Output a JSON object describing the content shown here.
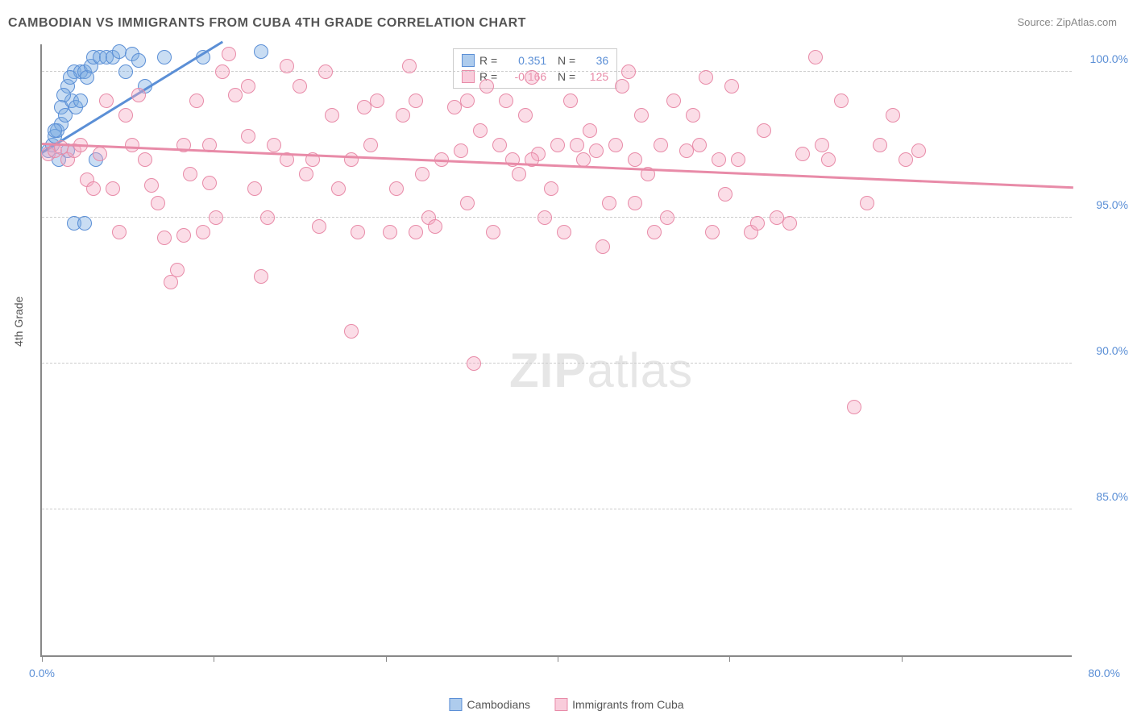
{
  "title": "CAMBODIAN VS IMMIGRANTS FROM CUBA 4TH GRADE CORRELATION CHART",
  "source": "Source: ZipAtlas.com",
  "ylabel": "4th Grade",
  "watermark_part1": "ZIP",
  "watermark_part2": "atlas",
  "chart": {
    "type": "scatter",
    "background_color": "#ffffff",
    "grid_color": "#cccccc",
    "axis_color": "#888888",
    "xlim": [
      0,
      80
    ],
    "ylim": [
      80,
      101
    ],
    "y_ticks": [
      85.0,
      90.0,
      95.0,
      100.0
    ],
    "y_tick_labels": [
      "85.0%",
      "90.0%",
      "95.0%",
      "100.0%"
    ],
    "x_ticks": [
      0,
      13.3,
      26.7,
      40,
      53.3,
      66.7
    ],
    "x_left_label": "0.0%",
    "x_right_label": "80.0%",
    "tick_fontsize": 14,
    "tick_color": "#5b8fd6",
    "marker_radius": 9,
    "marker_opacity": 0.45,
    "series": [
      {
        "name": "Cambodians",
        "color": "#5b8fd6",
        "fill": "rgba(120,170,225,0.4)",
        "stroke": "#5b8fd6",
        "R": "0.351",
        "N": "36",
        "trend": {
          "x1": 0,
          "y1": 97.2,
          "x2": 14,
          "y2": 101
        },
        "points": [
          [
            0.5,
            97.3
          ],
          [
            0.8,
            97.5
          ],
          [
            1.0,
            97.8
          ],
          [
            1.2,
            98.0
          ],
          [
            1.3,
            97.0
          ],
          [
            1.5,
            98.2
          ],
          [
            1.5,
            98.8
          ],
          [
            1.8,
            98.5
          ],
          [
            2.0,
            99.5
          ],
          [
            2.0,
            97.3
          ],
          [
            2.3,
            99.0
          ],
          [
            2.5,
            100.0
          ],
          [
            2.6,
            98.8
          ],
          [
            3.0,
            100.0
          ],
          [
            3.0,
            99.0
          ],
          [
            3.3,
            100.0
          ],
          [
            3.5,
            99.8
          ],
          [
            3.8,
            100.2
          ],
          [
            4.0,
            100.5
          ],
          [
            4.2,
            97.0
          ],
          [
            4.5,
            100.5
          ],
          [
            5.0,
            100.5
          ],
          [
            5.5,
            100.5
          ],
          [
            6.0,
            100.7
          ],
          [
            6.5,
            100.0
          ],
          [
            7.0,
            100.6
          ],
          [
            7.5,
            100.4
          ],
          [
            8.0,
            99.5
          ],
          [
            9.5,
            100.5
          ],
          [
            12.5,
            100.5
          ],
          [
            2.5,
            94.8
          ],
          [
            3.3,
            94.8
          ],
          [
            17.0,
            100.7
          ],
          [
            1.0,
            98.0
          ],
          [
            1.7,
            99.2
          ],
          [
            2.2,
            99.8
          ]
        ]
      },
      {
        "name": "Immigrants from Cuba",
        "color": "#e88ba8",
        "fill": "rgba(245,170,195,0.4)",
        "stroke": "#e88ba8",
        "R": "-0.166",
        "N": "125",
        "trend": {
          "x1": 0,
          "y1": 97.5,
          "x2": 80,
          "y2": 96.0
        },
        "points": [
          [
            0.5,
            97.2
          ],
          [
            1.0,
            97.3
          ],
          [
            1.5,
            97.4
          ],
          [
            2.0,
            97.0
          ],
          [
            2.5,
            97.3
          ],
          [
            3.0,
            97.5
          ],
          [
            3.5,
            96.3
          ],
          [
            4.0,
            96.0
          ],
          [
            4.5,
            97.2
          ],
          [
            5.0,
            99.0
          ],
          [
            5.5,
            96.0
          ],
          [
            6.0,
            94.5
          ],
          [
            6.5,
            98.5
          ],
          [
            7.0,
            97.5
          ],
          [
            7.5,
            99.2
          ],
          [
            8.0,
            97.0
          ],
          [
            8.5,
            96.1
          ],
          [
            9.0,
            95.5
          ],
          [
            9.5,
            94.3
          ],
          [
            10.0,
            92.8
          ],
          [
            10.5,
            93.2
          ],
          [
            11.0,
            94.4
          ],
          [
            11.5,
            96.5
          ],
          [
            12.0,
            99.0
          ],
          [
            12.5,
            94.5
          ],
          [
            13.0,
            97.5
          ],
          [
            13.5,
            95.0
          ],
          [
            14.0,
            100.0
          ],
          [
            14.5,
            100.6
          ],
          [
            15.0,
            99.2
          ],
          [
            16.0,
            97.8
          ],
          [
            16.5,
            96.0
          ],
          [
            17.0,
            93.0
          ],
          [
            17.5,
            95.0
          ],
          [
            18.0,
            97.5
          ],
          [
            19.0,
            100.2
          ],
          [
            20.0,
            99.5
          ],
          [
            20.5,
            96.5
          ],
          [
            21.0,
            97.0
          ],
          [
            22.0,
            100.0
          ],
          [
            22.5,
            98.5
          ],
          [
            23.0,
            96.0
          ],
          [
            24.0,
            91.1
          ],
          [
            24.5,
            94.5
          ],
          [
            25.0,
            98.8
          ],
          [
            25.5,
            97.5
          ],
          [
            26.0,
            99.0
          ],
          [
            27.0,
            94.5
          ],
          [
            27.5,
            96.0
          ],
          [
            28.0,
            98.5
          ],
          [
            28.5,
            100.2
          ],
          [
            29.0,
            99.0
          ],
          [
            29.5,
            96.5
          ],
          [
            30.0,
            95.0
          ],
          [
            30.5,
            94.7
          ],
          [
            31.0,
            97.0
          ],
          [
            32.0,
            98.8
          ],
          [
            32.5,
            97.3
          ],
          [
            33.0,
            95.5
          ],
          [
            33.5,
            90.0
          ],
          [
            34.0,
            98.0
          ],
          [
            34.5,
            99.5
          ],
          [
            35.0,
            94.5
          ],
          [
            35.5,
            97.5
          ],
          [
            36.0,
            99.0
          ],
          [
            36.5,
            97.0
          ],
          [
            37.0,
            96.5
          ],
          [
            37.5,
            98.5
          ],
          [
            38.0,
            99.8
          ],
          [
            38.5,
            97.2
          ],
          [
            39.0,
            95.0
          ],
          [
            39.5,
            96.0
          ],
          [
            40.0,
            97.5
          ],
          [
            40.5,
            94.5
          ],
          [
            41.0,
            99.0
          ],
          [
            41.5,
            97.5
          ],
          [
            42.0,
            97.0
          ],
          [
            42.5,
            98.0
          ],
          [
            43.0,
            97.3
          ],
          [
            43.5,
            94.0
          ],
          [
            44.0,
            95.5
          ],
          [
            44.5,
            97.5
          ],
          [
            45.0,
            99.5
          ],
          [
            45.5,
            100.0
          ],
          [
            46.0,
            97.0
          ],
          [
            46.5,
            98.5
          ],
          [
            47.0,
            96.5
          ],
          [
            47.5,
            94.5
          ],
          [
            48.0,
            97.5
          ],
          [
            48.5,
            95.0
          ],
          [
            49.0,
            99.0
          ],
          [
            50.0,
            97.3
          ],
          [
            50.5,
            98.5
          ],
          [
            51.0,
            97.5
          ],
          [
            52.0,
            94.5
          ],
          [
            52.5,
            97.0
          ],
          [
            53.0,
            95.8
          ],
          [
            53.5,
            99.5
          ],
          [
            54.0,
            97.0
          ],
          [
            55.0,
            94.5
          ],
          [
            55.5,
            94.8
          ],
          [
            56.0,
            98.0
          ],
          [
            57.0,
            95.0
          ],
          [
            58.0,
            94.8
          ],
          [
            59.0,
            97.2
          ],
          [
            60.0,
            100.5
          ],
          [
            60.5,
            97.5
          ],
          [
            61.0,
            97.0
          ],
          [
            62.0,
            99.0
          ],
          [
            63.0,
            88.5
          ],
          [
            64.0,
            95.5
          ],
          [
            65.0,
            97.5
          ],
          [
            66.0,
            98.5
          ],
          [
            67.0,
            97.0
          ],
          [
            68.0,
            97.3
          ],
          [
            11.0,
            97.5
          ],
          [
            13.0,
            96.2
          ],
          [
            16.0,
            99.5
          ],
          [
            19.0,
            97.0
          ],
          [
            21.5,
            94.7
          ],
          [
            24.0,
            97.0
          ],
          [
            29.0,
            94.5
          ],
          [
            33.0,
            99.0
          ],
          [
            38.0,
            97.0
          ],
          [
            46.0,
            95.5
          ],
          [
            51.5,
            99.8
          ]
        ]
      }
    ],
    "legend_bottom": {
      "items": [
        {
          "label": "Cambodians",
          "fill": "rgba(120,170,225,0.6)",
          "stroke": "#5b8fd6"
        },
        {
          "label": "Immigrants from Cuba",
          "fill": "rgba(245,170,195,0.6)",
          "stroke": "#e88ba8"
        }
      ]
    }
  }
}
